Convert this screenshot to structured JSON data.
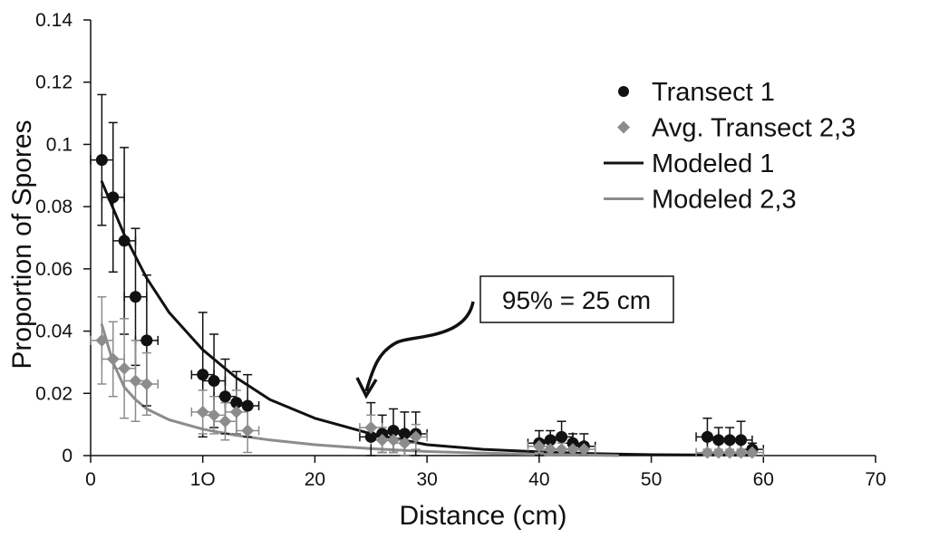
{
  "chart_data": {
    "type": "scatter",
    "xlabel": "Distance (cm)",
    "ylabel": "Proportion of Spores",
    "xlim": [
      0,
      70
    ],
    "ylim": [
      0,
      0.14
    ],
    "x_ticks": [
      "0",
      "1O",
      "20",
      "30",
      "40",
      "50",
      "60",
      "70"
    ],
    "x_tick_values": [
      0,
      10,
      20,
      30,
      40,
      50,
      60,
      70
    ],
    "y_ticks": [
      "0",
      "0.02",
      "0.04",
      "0.06",
      "0.08",
      "0.1",
      "0.12",
      "0.14"
    ],
    "y_tick_values": [
      0,
      0.02,
      0.04,
      0.06,
      0.08,
      0.1,
      0.12,
      0.14
    ],
    "grid": false,
    "legend_position": "top-right",
    "series": [
      {
        "name": "Transect 1",
        "kind": "points",
        "marker": "circle",
        "color": "#111111",
        "x": [
          1,
          2,
          3,
          4,
          5,
          10,
          11,
          12,
          13,
          14,
          25,
          26,
          27,
          28,
          29,
          40,
          41,
          42,
          43,
          44,
          55,
          56,
          57,
          58,
          59
        ],
        "y": [
          0.095,
          0.083,
          0.069,
          0.051,
          0.037,
          0.026,
          0.024,
          0.019,
          0.017,
          0.016,
          0.006,
          0.007,
          0.008,
          0.007,
          0.007,
          0.004,
          0.005,
          0.006,
          0.004,
          0.003,
          0.006,
          0.005,
          0.005,
          0.005,
          0.002
        ],
        "yerr": [
          0.021,
          0.024,
          0.03,
          0.022,
          0.021,
          0.02,
          0.015,
          0.012,
          0.01,
          0.01,
          0.011,
          0.006,
          0.007,
          0.007,
          0.007,
          0.004,
          0.003,
          0.005,
          0.003,
          0.004,
          0.006,
          0.004,
          0.004,
          0.006,
          0.002
        ],
        "xerr": 1.0
      },
      {
        "name": "Avg. Transect 2,3",
        "kind": "points",
        "marker": "diamond",
        "color": "#8c8c8c",
        "x": [
          1,
          2,
          3,
          4,
          5,
          10,
          11,
          12,
          13,
          14,
          25,
          26,
          27,
          28,
          29,
          40,
          41,
          42,
          43,
          44,
          55,
          56,
          57,
          58,
          59
        ],
        "y": [
          0.037,
          0.031,
          0.028,
          0.024,
          0.023,
          0.014,
          0.013,
          0.011,
          0.014,
          0.008,
          0.009,
          0.005,
          0.005,
          0.004,
          0.006,
          0.003,
          0.002,
          0.002,
          0.002,
          0.002,
          0.001,
          0.001,
          0.001,
          0.001,
          0.001
        ],
        "yerr": [
          0.014,
          0.012,
          0.016,
          0.013,
          0.01,
          0.007,
          0.006,
          0.006,
          0.007,
          0.007,
          0.004,
          0.004,
          0.004,
          0.004,
          0.004,
          0.002,
          0.002,
          0.002,
          0.002,
          0.002,
          0.001,
          0.001,
          0.001,
          0.001,
          0.001
        ],
        "xerr": 1.0
      },
      {
        "name": "Modeled 1",
        "kind": "line",
        "color": "#111111",
        "x": [
          1,
          3,
          5,
          7,
          10,
          13,
          16,
          20,
          25,
          30,
          35,
          40,
          45,
          50,
          55,
          59
        ],
        "y": [
          0.088,
          0.071,
          0.057,
          0.046,
          0.034,
          0.025,
          0.018,
          0.012,
          0.007,
          0.0035,
          0.002,
          0.0012,
          0.0006,
          0.0003,
          0.0002,
          0.0001
        ]
      },
      {
        "name": "Modeled 2,3",
        "kind": "line",
        "color": "#8c8c8c",
        "x": [
          1,
          2,
          3,
          4,
          5,
          7,
          10,
          13,
          16,
          20,
          25,
          30,
          35,
          40,
          47
        ],
        "y": [
          0.042,
          0.03,
          0.022,
          0.018,
          0.015,
          0.0115,
          0.0085,
          0.0065,
          0.005,
          0.0035,
          0.0022,
          0.0013,
          0.0008,
          0.0004,
          0.0
        ]
      }
    ],
    "annotation": {
      "text": "95% = 25 cm",
      "arrow_target": [
        25,
        0.018
      ]
    }
  }
}
